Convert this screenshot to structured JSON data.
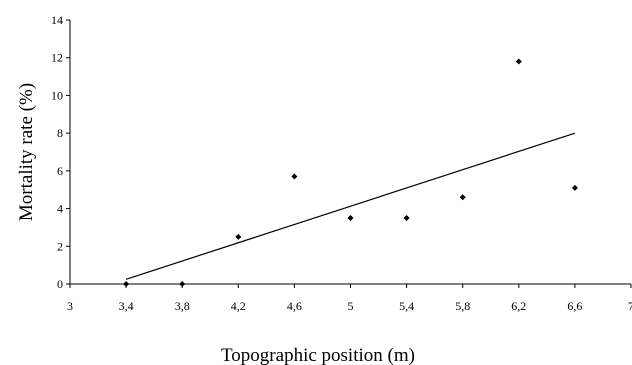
{
  "chart_data": {
    "type": "scatter",
    "title": "",
    "xlabel": "Topographic position (m)",
    "ylabel": "Mortality rate (%)",
    "xlim": [
      3,
      7
    ],
    "ylim": [
      0,
      14
    ],
    "x_ticks": [
      {
        "value": 3,
        "label": "3"
      },
      {
        "value": 3.4,
        "label": "3,4"
      },
      {
        "value": 3.8,
        "label": "3,8"
      },
      {
        "value": 4.2,
        "label": "4,2"
      },
      {
        "value": 4.6,
        "label": "4,6"
      },
      {
        "value": 5,
        "label": "5"
      },
      {
        "value": 5.4,
        "label": "5,4"
      },
      {
        "value": 5.8,
        "label": "5,8"
      },
      {
        "value": 6.2,
        "label": "6,2"
      },
      {
        "value": 6.6,
        "label": "6,6"
      },
      {
        "value": 7,
        "label": "7"
      }
    ],
    "y_ticks": [
      {
        "value": 0,
        "label": "0"
      },
      {
        "value": 2,
        "label": "2"
      },
      {
        "value": 4,
        "label": "4"
      },
      {
        "value": 6,
        "label": "6"
      },
      {
        "value": 8,
        "label": "8"
      },
      {
        "value": 10,
        "label": "10"
      },
      {
        "value": 12,
        "label": "12"
      },
      {
        "value": 14,
        "label": "14"
      }
    ],
    "points": [
      {
        "x": 3.4,
        "y": 0
      },
      {
        "x": 3.8,
        "y": 0
      },
      {
        "x": 4.2,
        "y": 2.5
      },
      {
        "x": 4.6,
        "y": 5.7
      },
      {
        "x": 5.0,
        "y": 3.5
      },
      {
        "x": 5.4,
        "y": 3.5
      },
      {
        "x": 5.8,
        "y": 4.6
      },
      {
        "x": 6.2,
        "y": 11.8
      },
      {
        "x": 6.6,
        "y": 5.1
      }
    ],
    "trendline": {
      "x1": 3.4,
      "y1": 0.25,
      "x2": 6.6,
      "y2": 8.0
    },
    "grid": false,
    "legend": "none",
    "colors": {
      "marker": "#000000",
      "line": "#000000"
    }
  }
}
